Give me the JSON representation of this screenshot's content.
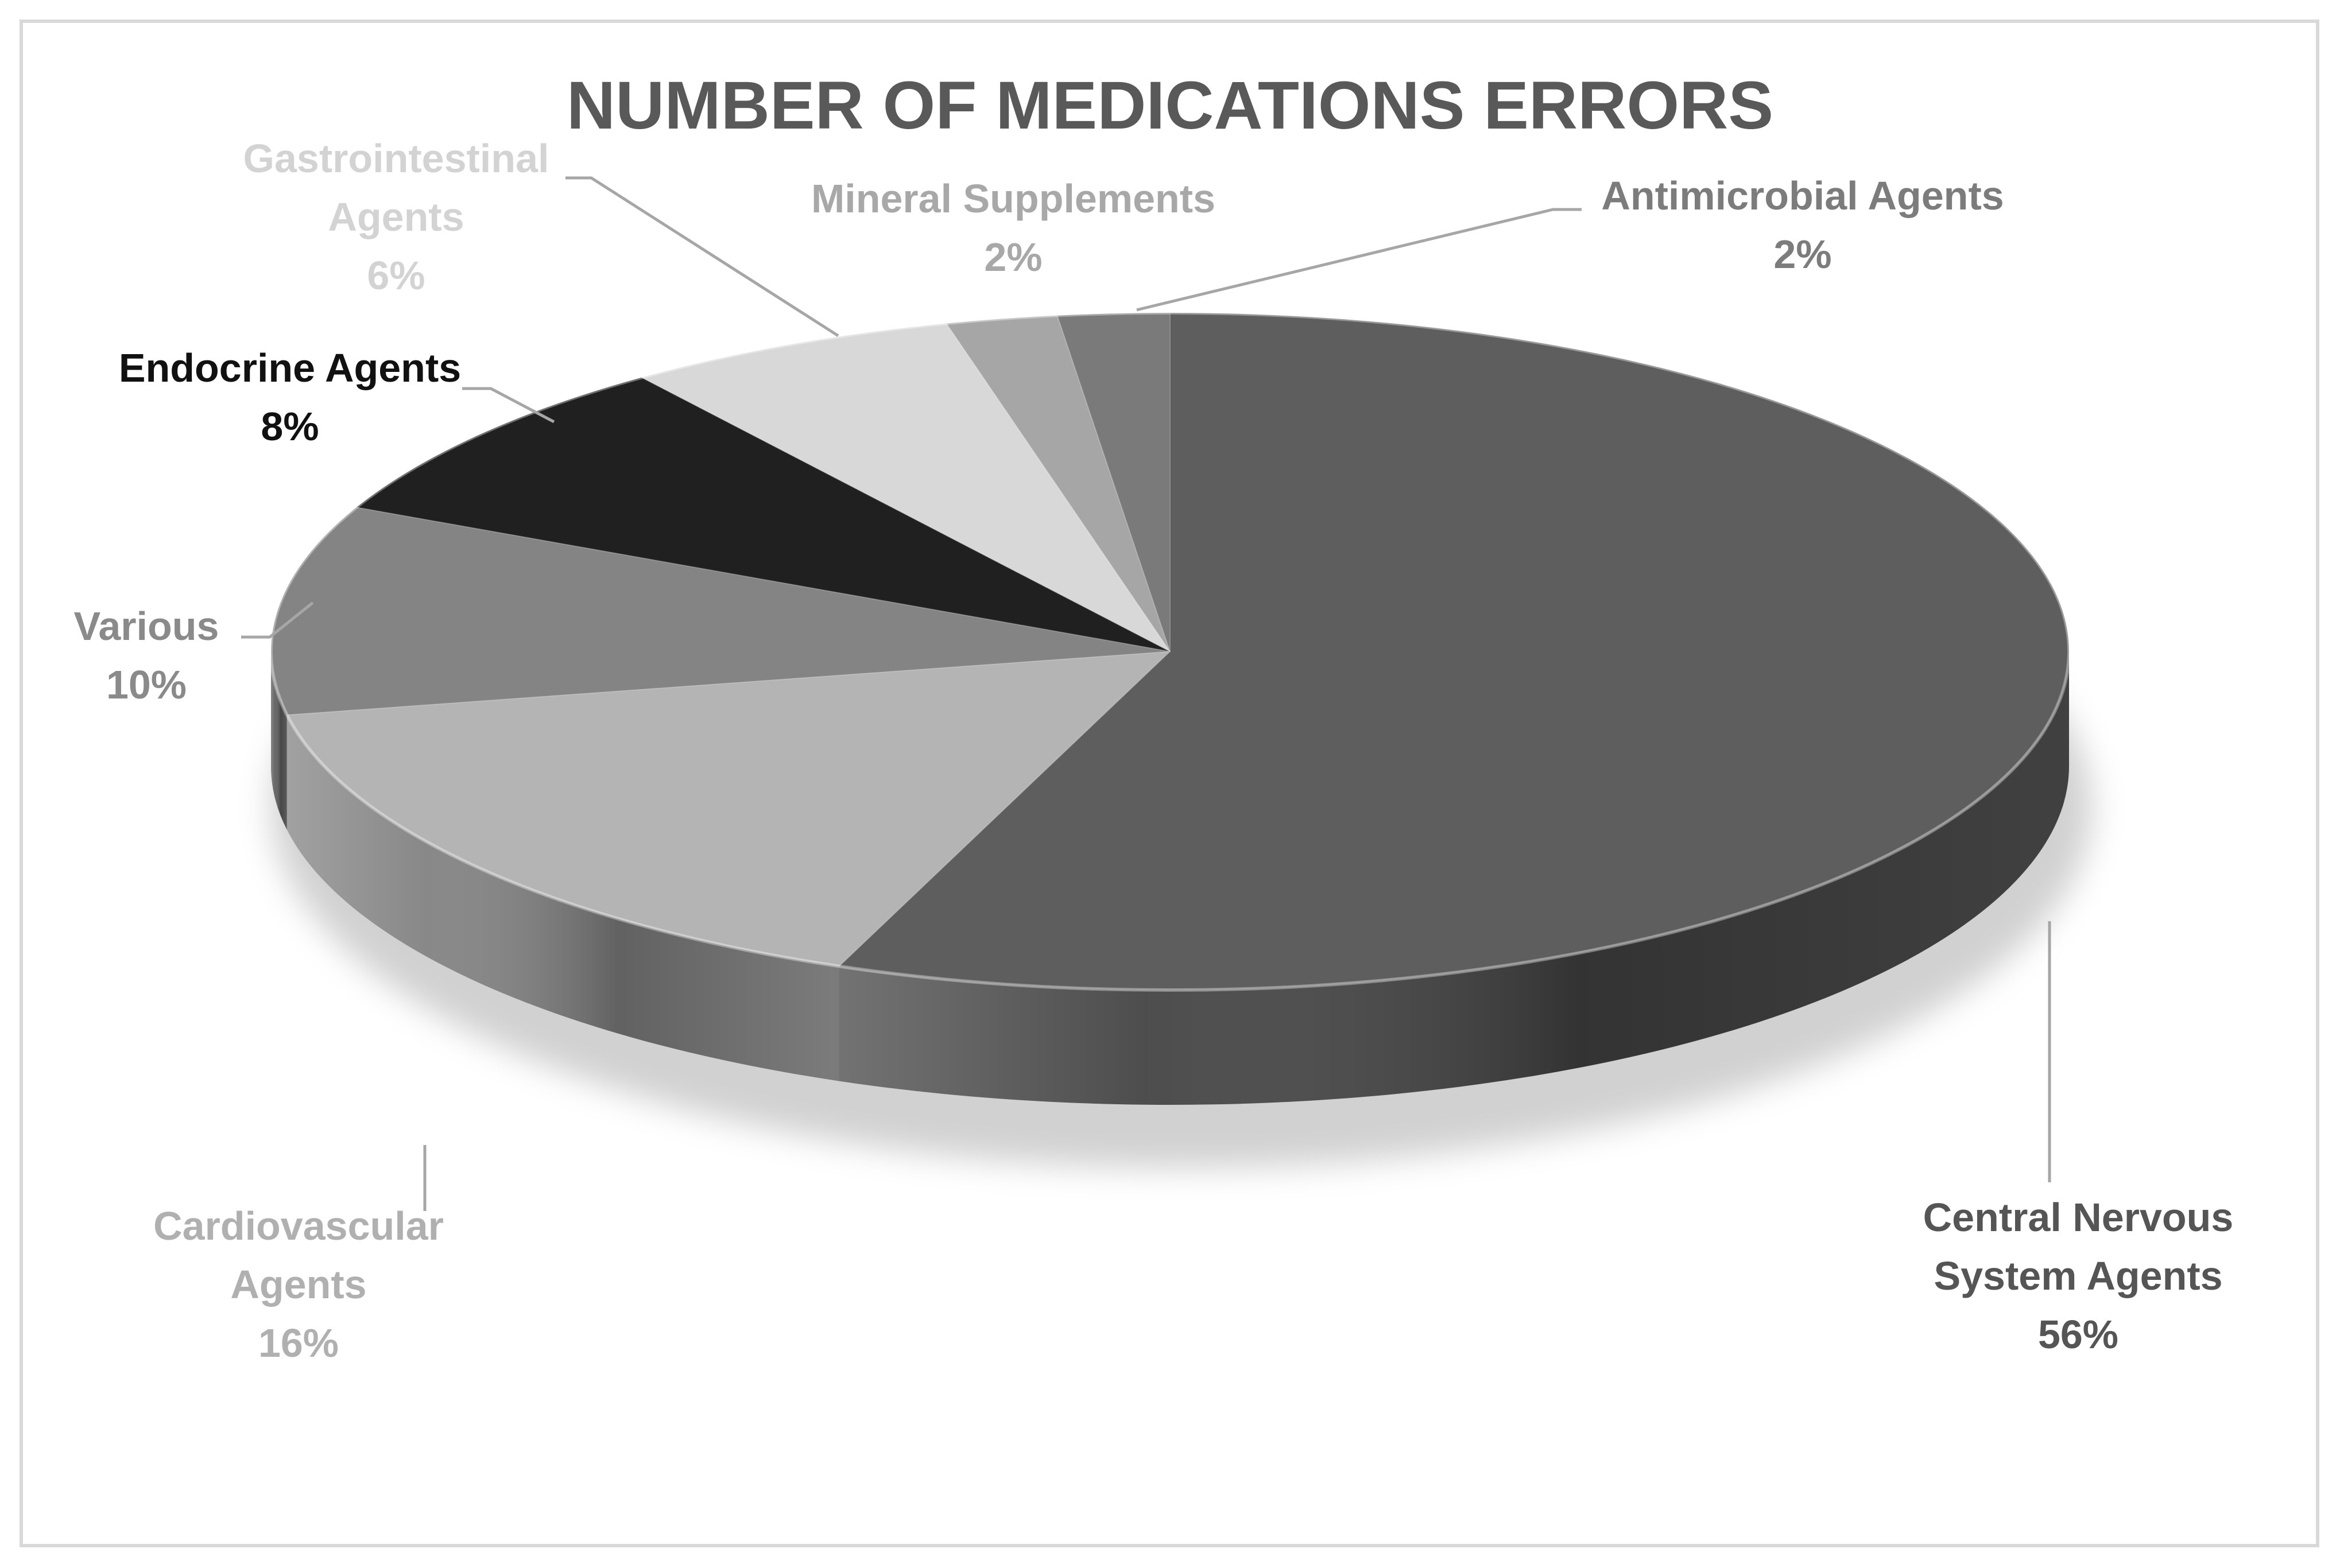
{
  "chart_data": {
    "type": "pie",
    "title": "NUMBER OF MEDICATIONS ERRORS",
    "legend": "none",
    "slices": [
      {
        "label_lines": [
          "Central Nervous",
          "System Agents"
        ],
        "percent_label": "56%",
        "value": 56,
        "color": "#5e5e5e",
        "label_color": "#555555"
      },
      {
        "label_lines": [
          "Cardiovascular",
          "Agents"
        ],
        "percent_label": "16%",
        "value": 16,
        "color": "#b4b4b4",
        "label_color": "#b0b0b0"
      },
      {
        "label_lines": [
          "Various"
        ],
        "percent_label": "10%",
        "value": 10,
        "color": "#848484",
        "label_color": "#8a8a8a"
      },
      {
        "label_lines": [
          "Endocrine Agents"
        ],
        "percent_label": "8%",
        "value": 8,
        "color": "#202020",
        "label_color": "#111111"
      },
      {
        "label_lines": [
          "Gastrointestinal",
          "Agents"
        ],
        "percent_label": "6%",
        "value": 6,
        "color": "#d8d8d8",
        "label_color": "#d3d3d3"
      },
      {
        "label_lines": [
          "Mineral Supplements"
        ],
        "percent_label": "2%",
        "value": 2,
        "color": "#a6a6a6",
        "label_color": "#a8a8a8"
      },
      {
        "label_lines": [
          "Antimicrobial Agents"
        ],
        "percent_label": "2%",
        "value": 2,
        "color": "#7a7a7a",
        "label_color": "#7c7c7c"
      }
    ]
  }
}
